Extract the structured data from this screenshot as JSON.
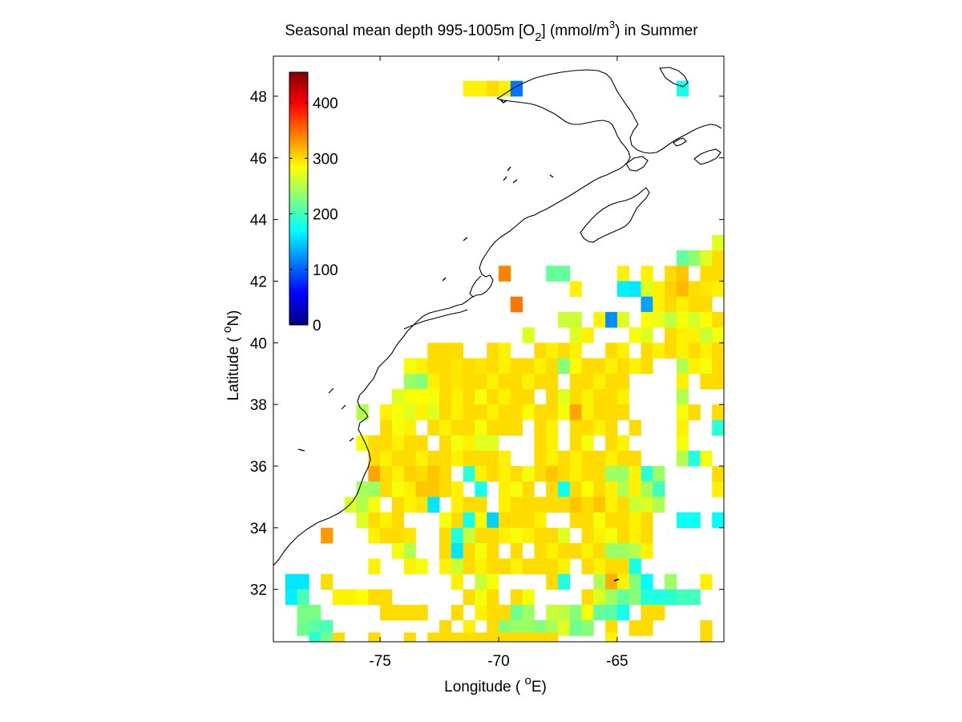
{
  "chart_data": {
    "type": "heatmap",
    "title": {
      "prefix": "Seasonal mean depth 995-1005m [O",
      "sub": "2",
      "middle": "] (mmol/m",
      "sup": "3",
      "suffix": ") in  Summer"
    },
    "xlabel": {
      "pre": "Longitude ( ",
      "sup": "o",
      "post": "E)"
    },
    "ylabel": {
      "pre": "Latitude ( ",
      "sup": "o",
      "post": "N)"
    },
    "xlim": [
      -79.5,
      -60.5
    ],
    "ylim": [
      30.3,
      49.3
    ],
    "x_ticks": [
      -75,
      -70,
      -65
    ],
    "y_ticks": [
      32,
      34,
      36,
      38,
      40,
      42,
      44,
      46,
      48
    ],
    "colorbar": {
      "colormap": "jet",
      "range": [
        0,
        455
      ],
      "ticks": [
        0,
        100,
        200,
        300,
        400
      ]
    },
    "cell_size_deg": 0.5,
    "grid": false,
    "coastline": true,
    "rows": [
      {
        "lat": 48.25,
        "lons": [
          -71.25,
          -70.75,
          -70.25,
          -69.75,
          -69.25,
          -62.25
        ],
        "values": [
          290,
          290,
          300,
          290,
          110,
          180
        ]
      },
      {
        "lat": 43.25,
        "lons": [
          -60.75
        ],
        "values": [
          270
        ]
      },
      {
        "lat": 42.75,
        "lons": [
          -62.25,
          -61.75,
          -61.25,
          -60.75
        ],
        "values": [
          215,
          235,
          270,
          300
        ]
      },
      {
        "lat": 42.25,
        "lons": [
          -69.75,
          -67.75,
          -67.25,
          -64.75,
          -63.75,
          -62.75,
          -62.25,
          -61.25,
          -60.75
        ],
        "values": [
          340,
          215,
          215,
          290,
          290,
          300,
          310,
          300,
          300
        ]
      },
      {
        "lat": 41.75,
        "lons": [
          -66.75,
          -64.75,
          -64.25,
          -63.75,
          -63.25,
          -62.75,
          -62.25,
          -61.75,
          -61.25,
          -60.75
        ],
        "values": [
          290,
          165,
          160,
          270,
          290,
          305,
          315,
          300,
          295,
          290
        ]
      },
      {
        "lat": 41.25,
        "lons": [
          -69.25,
          -63.75,
          -63.25,
          -62.75,
          -62.25,
          -61.75,
          -61.25
        ],
        "values": [
          345,
          130,
          290,
          300,
          290,
          300,
          300
        ]
      },
      {
        "lat": 40.75,
        "lons": [
          -67.25,
          -66.75,
          -65.75,
          -65.25,
          -64.75,
          -63.75,
          -63.25,
          -62.75,
          -62.25,
          -61.75,
          -61.25,
          -60.75
        ],
        "values": [
          260,
          260,
          290,
          120,
          270,
          285,
          275,
          255,
          280,
          265,
          285,
          300
        ]
      },
      {
        "lat": 40.25,
        "lons": [
          -68.75,
          -66.75,
          -66.25,
          -64.25,
          -63.75,
          -62.75,
          -62.25,
          -61.75,
          -61.25,
          -60.75
        ],
        "values": [
          270,
          270,
          290,
          280,
          270,
          300,
          290,
          290,
          260,
          280
        ]
      },
      {
        "lat": 39.75,
        "lons": [
          -72.75,
          -72.25,
          -71.75,
          -70.25,
          -69.75,
          -68.25,
          -67.75,
          -67.25,
          -66.75,
          -65.25,
          -64.75,
          -63.75,
          -63.25,
          -62.75,
          -62.25,
          -61.75,
          -61.25,
          -60.75
        ],
        "values": [
          300,
          300,
          300,
          300,
          290,
          300,
          290,
          300,
          290,
          300,
          290,
          300,
          290,
          300,
          290,
          300,
          290,
          300
        ]
      },
      {
        "lat": 39.25,
        "lons": [
          -73.75,
          -73.25,
          -72.75,
          -72.25,
          -71.75,
          -71.25,
          -70.75,
          -70.25,
          -69.75,
          -69.25,
          -68.75,
          -68.25,
          -67.75,
          -67.25,
          -66.75,
          -66.25,
          -65.75,
          -65.25,
          -64.75,
          -64.25,
          -63.75,
          -62.25,
          -61.75,
          -61.25,
          -60.75
        ],
        "values": [
          280,
          290,
          300,
          300,
          295,
          300,
          295,
          300,
          290,
          300,
          300,
          290,
          300,
          230,
          285,
          300,
          300,
          290,
          300,
          290,
          300,
          250,
          290,
          280,
          300
        ]
      },
      {
        "lat": 38.75,
        "lons": [
          -73.75,
          -73.25,
          -72.75,
          -72.25,
          -71.75,
          -71.25,
          -70.75,
          -70.25,
          -69.75,
          -69.25,
          -68.75,
          -68.25,
          -67.75,
          -66.75,
          -66.25,
          -65.75,
          -65.25,
          -64.75,
          -62.25,
          -61.25,
          -60.75
        ],
        "values": [
          240,
          230,
          290,
          300,
          295,
          300,
          300,
          290,
          300,
          300,
          290,
          300,
          300,
          300,
          300,
          290,
          300,
          300,
          290,
          300,
          300
        ]
      },
      {
        "lat": 38.25,
        "lons": [
          -74.25,
          -73.75,
          -73.25,
          -72.75,
          -72.25,
          -71.75,
          -71.25,
          -70.75,
          -70.25,
          -69.75,
          -69.25,
          -68.75,
          -67.75,
          -67.25,
          -66.75,
          -66.25,
          -65.75,
          -65.25,
          -64.75,
          -62.25
        ],
        "values": [
          270,
          280,
          285,
          280,
          300,
          290,
          300,
          280,
          300,
          290,
          300,
          300,
          300,
          270,
          300,
          290,
          300,
          300,
          290,
          250
        ]
      },
      {
        "lat": 37.75,
        "lons": [
          -75.75,
          -74.75,
          -74.25,
          -73.75,
          -73.25,
          -72.75,
          -72.25,
          -71.75,
          -71.25,
          -70.75,
          -70.25,
          -69.75,
          -69.25,
          -68.75,
          -68.25,
          -67.75,
          -67.25,
          -66.75,
          -66.25,
          -65.75,
          -65.25,
          -64.75,
          -62.25,
          -61.75,
          -60.75
        ],
        "values": [
          250,
          290,
          280,
          270,
          290,
          270,
          300,
          290,
          300,
          300,
          290,
          300,
          300,
          285,
          300,
          300,
          280,
          325,
          290,
          300,
          300,
          300,
          280,
          300,
          300
        ]
      },
      {
        "lat": 37.25,
        "lons": [
          -74.75,
          -74.25,
          -73.75,
          -72.75,
          -72.25,
          -71.75,
          -71.25,
          -70.75,
          -70.25,
          -69.75,
          -69.25,
          -68.25,
          -67.75,
          -66.75,
          -66.25,
          -65.75,
          -65.25,
          -64.25,
          -62.25,
          -60.75
        ],
        "values": [
          300,
          280,
          290,
          300,
          290,
          300,
          300,
          280,
          300,
          300,
          300,
          300,
          290,
          300,
          300,
          290,
          300,
          300,
          290,
          190
        ]
      },
      {
        "lat": 36.75,
        "lons": [
          -75.75,
          -75.25,
          -74.75,
          -74.25,
          -73.75,
          -73.25,
          -72.25,
          -71.75,
          -71.25,
          -70.75,
          -70.25,
          -68.25,
          -67.75,
          -66.75,
          -66.25,
          -65.25,
          -64.75,
          -62.25
        ],
        "values": [
          280,
          300,
          300,
          290,
          300,
          300,
          300,
          280,
          290,
          270,
          270,
          300,
          290,
          300,
          280,
          300,
          290,
          280
        ]
      },
      {
        "lat": 36.25,
        "lons": [
          -75.25,
          -74.75,
          -74.25,
          -73.75,
          -73.25,
          -72.75,
          -72.25,
          -71.75,
          -71.25,
          -70.75,
          -70.25,
          -69.75,
          -68.25,
          -67.75,
          -67.25,
          -66.75,
          -66.25,
          -65.75,
          -65.25,
          -64.75,
          -64.25,
          -62.25,
          -61.75,
          -61.25
        ],
        "values": [
          300,
          290,
          300,
          300,
          290,
          300,
          300,
          290,
          300,
          300,
          300,
          290,
          300,
          290,
          300,
          290,
          300,
          300,
          290,
          300,
          300,
          250,
          185,
          280
        ]
      },
      {
        "lat": 35.75,
        "lons": [
          -75.25,
          -74.75,
          -74.25,
          -73.75,
          -73.25,
          -72.75,
          -72.25,
          -71.25,
          -70.75,
          -70.25,
          -69.75,
          -69.25,
          -68.75,
          -68.25,
          -67.75,
          -67.25,
          -66.75,
          -66.25,
          -65.75,
          -65.25,
          -64.75,
          -64.25,
          -63.75,
          -63.25,
          -60.75
        ],
        "values": [
          325,
          300,
          290,
          305,
          300,
          310,
          300,
          190,
          290,
          300,
          290,
          300,
          280,
          300,
          310,
          300,
          290,
          300,
          300,
          240,
          240,
          290,
          190,
          240,
          300
        ]
      },
      {
        "lat": 35.25,
        "lons": [
          -75.75,
          -75.25,
          -74.75,
          -74.25,
          -73.75,
          -73.25,
          -72.75,
          -72.25,
          -71.75,
          -70.75,
          -69.75,
          -69.25,
          -68.75,
          -67.75,
          -67.25,
          -66.75,
          -66.25,
          -65.75,
          -65.25,
          -64.75,
          -64.25,
          -63.75,
          -63.25,
          -60.75
        ],
        "values": [
          245,
          240,
          300,
          280,
          290,
          310,
          310,
          300,
          290,
          180,
          290,
          280,
          300,
          300,
          175,
          300,
          285,
          300,
          290,
          250,
          290,
          245,
          200,
          290
        ]
      },
      {
        "lat": 34.75,
        "lons": [
          -76.25,
          -75.75,
          -75.25,
          -74.25,
          -73.75,
          -73.25,
          -72.75,
          -71.75,
          -71.25,
          -70.75,
          -69.75,
          -69.25,
          -68.75,
          -68.25,
          -67.75,
          -67.25,
          -66.75,
          -66.25,
          -65.75,
          -65.25,
          -64.75,
          -64.25,
          -63.75,
          -63.25
        ],
        "values": [
          270,
          250,
          280,
          300,
          290,
          295,
          160,
          290,
          300,
          300,
          290,
          300,
          300,
          300,
          300,
          300,
          310,
          300,
          310,
          290,
          300,
          260,
          270,
          250
        ]
      },
      {
        "lat": 34.25,
        "lons": [
          -75.75,
          -75.25,
          -74.75,
          -74.25,
          -72.25,
          -71.75,
          -71.25,
          -70.75,
          -70.25,
          -69.75,
          -69.25,
          -68.75,
          -68.25,
          -66.75,
          -66.25,
          -65.75,
          -65.25,
          -64.75,
          -64.25,
          -63.75,
          -62.25,
          -61.75,
          -60.75
        ],
        "values": [
          270,
          300,
          290,
          300,
          280,
          300,
          180,
          285,
          150,
          300,
          300,
          300,
          290,
          300,
          300,
          280,
          300,
          300,
          290,
          300,
          175,
          175,
          170
        ]
      },
      {
        "lat": 33.75,
        "lons": [
          -77.25,
          -75.25,
          -74.75,
          -74.25,
          -73.75,
          -72.25,
          -71.75,
          -71.25,
          -70.75,
          -70.25,
          -69.75,
          -69.25,
          -68.75,
          -68.25,
          -67.75,
          -67.25,
          -66.25,
          -65.75,
          -65.25,
          -64.75,
          -64.25,
          -63.75
        ],
        "values": [
          330,
          290,
          300,
          300,
          295,
          300,
          185,
          260,
          300,
          300,
          290,
          280,
          290,
          300,
          300,
          270,
          300,
          290,
          280,
          300,
          290,
          300
        ]
      },
      {
        "lat": 33.25,
        "lons": [
          -74.25,
          -73.75,
          -72.25,
          -71.75,
          -71.25,
          -70.75,
          -70.25,
          -69.25,
          -68.25,
          -67.75,
          -67.25,
          -66.75,
          -66.25,
          -65.75,
          -65.25,
          -64.75,
          -64.25,
          -63.75
        ],
        "values": [
          280,
          250,
          300,
          160,
          300,
          280,
          300,
          300,
          300,
          290,
          300,
          300,
          290,
          300,
          240,
          240,
          250,
          290
        ]
      },
      {
        "lat": 32.75,
        "lons": [
          -75.25,
          -73.75,
          -73.25,
          -72.25,
          -71.75,
          -71.25,
          -70.75,
          -70.25,
          -69.75,
          -69.25,
          -68.75,
          -68.25,
          -67.75,
          -67.25,
          -66.25,
          -65.75,
          -65.25,
          -64.75,
          -64.25
        ],
        "values": [
          290,
          290,
          280,
          290,
          260,
          300,
          290,
          300,
          300,
          290,
          300,
          300,
          300,
          290,
          300,
          290,
          300,
          300,
          180
        ]
      },
      {
        "lat": 32.25,
        "lons": [
          -78.75,
          -78.25,
          -77.25,
          -71.75,
          -70.75,
          -70.25,
          -67.75,
          -67.25,
          -65.75,
          -65.25,
          -64.75,
          -64.25,
          -63.75,
          -62.75,
          -61.25
        ],
        "values": [
          160,
          160,
          300,
          290,
          260,
          280,
          300,
          185,
          250,
          320,
          290,
          230,
          170,
          240,
          290
        ]
      },
      {
        "lat": 31.75,
        "lons": [
          -78.75,
          -78.25,
          -76.75,
          -76.25,
          -75.75,
          -75.25,
          -74.75,
          -71.25,
          -70.75,
          -70.25,
          -69.25,
          -68.75,
          -66.25,
          -65.75,
          -65.25,
          -64.75,
          -64.25,
          -63.75,
          -63.25,
          -62.75,
          -62.25,
          -61.75
        ],
        "values": [
          165,
          205,
          290,
          290,
          285,
          300,
          300,
          300,
          280,
          300,
          300,
          280,
          300,
          270,
          240,
          215,
          230,
          185,
          185,
          190,
          200,
          200
        ]
      },
      {
        "lat": 31.25,
        "lons": [
          -78.25,
          -77.75,
          -74.75,
          -74.25,
          -73.75,
          -73.25,
          -71.75,
          -70.75,
          -70.25,
          -69.75,
          -69.25,
          -68.75,
          -67.75,
          -67.25,
          -66.75,
          -66.25,
          -65.75,
          -65.25,
          -64.75,
          -63.75,
          -63.25
        ],
        "values": [
          225,
          225,
          300,
          300,
          300,
          300,
          300,
          290,
          300,
          300,
          220,
          240,
          260,
          255,
          230,
          280,
          215,
          210,
          180,
          300,
          300
        ]
      },
      {
        "lat": 30.75,
        "lons": [
          -78.25,
          -77.75,
          -77.25,
          -72.25,
          -71.25,
          -70.25,
          -69.75,
          -69.25,
          -68.75,
          -68.25,
          -67.75,
          -67.25,
          -66.75,
          -66.25,
          -65.25,
          -64.25,
          -63.75,
          -61.25
        ],
        "values": [
          220,
          210,
          205,
          300,
          290,
          300,
          230,
          240,
          240,
          230,
          245,
          270,
          220,
          230,
          300,
          300,
          300,
          300
        ]
      },
      {
        "lat": 30.35,
        "lons": [
          -77.75,
          -77.25,
          -76.75,
          -75.25,
          -73.75,
          -72.75,
          -72.25,
          -71.75,
          -71.25,
          -70.75,
          -70.25,
          -69.75,
          -69.25,
          -68.75,
          -68.25,
          -67.75,
          -65.25,
          -61.25
        ],
        "values": [
          190,
          220,
          300,
          300,
          300,
          300,
          300,
          300,
          300,
          300,
          300,
          300,
          300,
          300,
          300,
          300,
          290,
          300
        ]
      }
    ]
  }
}
